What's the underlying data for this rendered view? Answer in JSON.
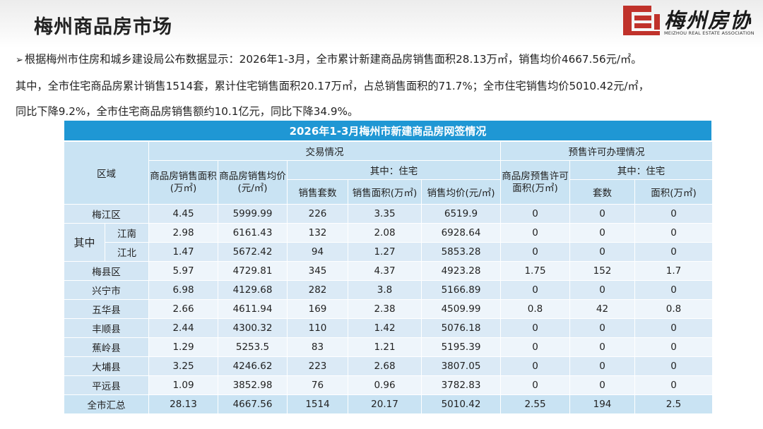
{
  "page_title": "梅州商品房市场",
  "logo": {
    "cn": "梅州房协",
    "en": "MEIZHOU REAL ESTATE ASSOCIATION"
  },
  "intro": {
    "bullet": "➢",
    "line1": "根据梅州市住房和城乡建设局公布数据显示：2026年1-3月，全市累计新建商品房销售面积28.13万㎡，销售均价4667.56元/㎡。",
    "line2": "其中，全市住宅商品房累计销售1514套，累计住宅销售面积20.17万㎡，占总销售面积的71.7%；全市住宅销售均价5010.42元/㎡，",
    "line3": "同比下降9.2%，全市住宅商品房销售额约10.1亿元，同比下降34.9%。"
  },
  "table": {
    "title": "2026年1-3月梅州市新建商品房网签情况",
    "headers": {
      "region": "区域",
      "trade": "交易情况",
      "presale": "预售许可办理情况",
      "area": "商品房销售面积(万㎡)",
      "price": "商品房销售均价(元/㎡)",
      "of_which_residential": "其中：住宅",
      "units": "销售套数",
      "res_area": "销售面积(万㎡)",
      "res_price": "销售均价(元/㎡)",
      "presale_area": "商品房预售许可面积(万㎡)",
      "presale_of_which": "其中：住宅",
      "presale_units": "套数",
      "presale_res_area": "面积(万㎡)"
    },
    "of_which_label": "其中",
    "rows": [
      {
        "name": "梅江区",
        "area": "4.45",
        "price": "5999.99",
        "units": "226",
        "res_area": "3.35",
        "res_price": "6519.9",
        "presale_area": "0",
        "presale_units": "0",
        "presale_res_area": "0"
      },
      {
        "name": "江南",
        "area": "2.98",
        "price": "6161.43",
        "units": "132",
        "res_area": "2.08",
        "res_price": "6928.64",
        "presale_area": "0",
        "presale_units": "0",
        "presale_res_area": "0"
      },
      {
        "name": "江北",
        "area": "1.47",
        "price": "5672.42",
        "units": "94",
        "res_area": "1.27",
        "res_price": "5853.28",
        "presale_area": "0",
        "presale_units": "0",
        "presale_res_area": "0"
      },
      {
        "name": "梅县区",
        "area": "5.97",
        "price": "4729.81",
        "units": "345",
        "res_area": "4.37",
        "res_price": "4923.28",
        "presale_area": "1.75",
        "presale_units": "152",
        "presale_res_area": "1.7"
      },
      {
        "name": "兴宁市",
        "area": "6.98",
        "price": "4129.68",
        "units": "282",
        "res_area": "3.8",
        "res_price": "5166.89",
        "presale_area": "0",
        "presale_units": "0",
        "presale_res_area": "0"
      },
      {
        "name": "五华县",
        "area": "2.66",
        "price": "4611.94",
        "units": "169",
        "res_area": "2.38",
        "res_price": "4509.99",
        "presale_area": "0.8",
        "presale_units": "42",
        "presale_res_area": "0.8"
      },
      {
        "name": "丰顺县",
        "area": "2.44",
        "price": "4300.32",
        "units": "110",
        "res_area": "1.42",
        "res_price": "5076.18",
        "presale_area": "0",
        "presale_units": "0",
        "presale_res_area": "0"
      },
      {
        "name": "蕉岭县",
        "area": "1.29",
        "price": "5253.5",
        "units": "83",
        "res_area": "1.21",
        "res_price": "5195.39",
        "presale_area": "0",
        "presale_units": "0",
        "presale_res_area": "0"
      },
      {
        "name": "大埔县",
        "area": "3.25",
        "price": "4246.62",
        "units": "223",
        "res_area": "2.68",
        "res_price": "3807.05",
        "presale_area": "0",
        "presale_units": "0",
        "presale_res_area": "0"
      },
      {
        "name": "平远县",
        "area": "1.09",
        "price": "3852.98",
        "units": "76",
        "res_area": "0.96",
        "res_price": "3782.83",
        "presale_area": "0",
        "presale_units": "0",
        "presale_res_area": "0"
      },
      {
        "name": "全市汇总",
        "area": "28.13",
        "price": "4667.56",
        "units": "1514",
        "res_area": "20.17",
        "res_price": "5010.42",
        "presale_area": "2.55",
        "presale_units": "194",
        "presale_res_area": "2.5"
      }
    ]
  },
  "colors": {
    "title_bar": "#1f97d4",
    "header_cell": "#c9e3f3",
    "row_odd": "#dbeaf6",
    "row_even": "#eef5fb",
    "logo_red": "#c0322b"
  }
}
